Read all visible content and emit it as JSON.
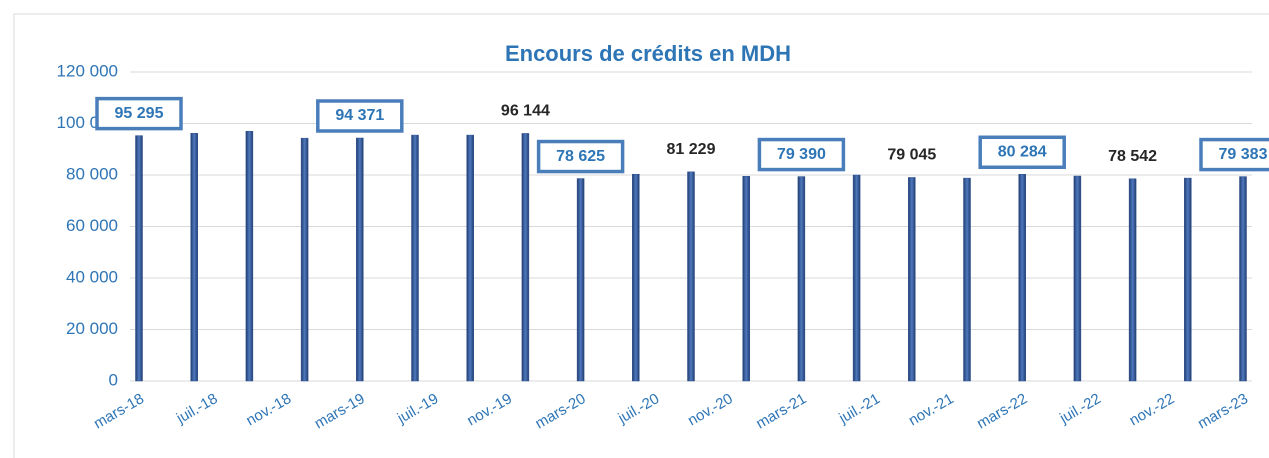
{
  "chart_data": {
    "type": "bar",
    "title": "Encours de crédits en MDH",
    "x": [
      "2018-03",
      "2018-06",
      "2018-09",
      "2018-12",
      "2019-03",
      "2019-06",
      "2019-09",
      "2019-12",
      "2020-03",
      "2020-06",
      "2020-09",
      "2020-12",
      "2021-03",
      "2021-06",
      "2021-09",
      "2021-12",
      "2022-03",
      "2022-06",
      "2022-09",
      "2022-12",
      "2023-03"
    ],
    "values": [
      95295,
      96200,
      97000,
      94300,
      94371,
      95500,
      95500,
      96144,
      78625,
      80300,
      81229,
      79500,
      79390,
      80000,
      79045,
      78800,
      80284,
      79600,
      78542,
      78800,
      79383
    ],
    "value_labels": [
      "95 295",
      null,
      null,
      null,
      "94 371",
      null,
      null,
      "96 144",
      "78 625",
      null,
      "81 229",
      null,
      "79 390",
      null,
      "79 045",
      null,
      "80 284",
      null,
      "78 542",
      null,
      "79 383"
    ],
    "color": "#2f528f",
    "xlim": [
      "2018-03",
      "2023-03"
    ],
    "xticks": [
      {
        "value": "2018-03",
        "label": "mars-18"
      },
      {
        "value": "2018-07",
        "label": "juil.-18"
      },
      {
        "value": "2018-11",
        "label": "nov.-18"
      },
      {
        "value": "2019-03",
        "label": "mars-19"
      },
      {
        "value": "2019-07",
        "label": "juil.-19"
      },
      {
        "value": "2019-11",
        "label": "nov.-19"
      },
      {
        "value": "2020-03",
        "label": "mars-20"
      },
      {
        "value": "2020-07",
        "label": "juil.-20"
      },
      {
        "value": "2020-11",
        "label": "nov.-20"
      },
      {
        "value": "2021-03",
        "label": "mars-21"
      },
      {
        "value": "2021-07",
        "label": "juil.-21"
      },
      {
        "value": "2021-11",
        "label": "nov.-21"
      },
      {
        "value": "2022-03",
        "label": "mars-22"
      },
      {
        "value": "2022-07",
        "label": "juil.-22"
      },
      {
        "value": "2022-11",
        "label": "nov.-22"
      },
      {
        "value": "2023-03",
        "label": "mars-23"
      }
    ],
    "ylim": [
      0,
      120000
    ],
    "yticks": [
      0,
      {
        "value": 20000,
        "label": "20 000"
      },
      {
        "value": 40000,
        "label": "40 000"
      },
      {
        "value": 60000,
        "label": "60 000"
      },
      {
        "value": 80000,
        "label": "80 000"
      },
      {
        "value": 100000,
        "label": "100 000"
      },
      {
        "value": 120000,
        "label": "120 000"
      }
    ],
    "grid": true
  }
}
